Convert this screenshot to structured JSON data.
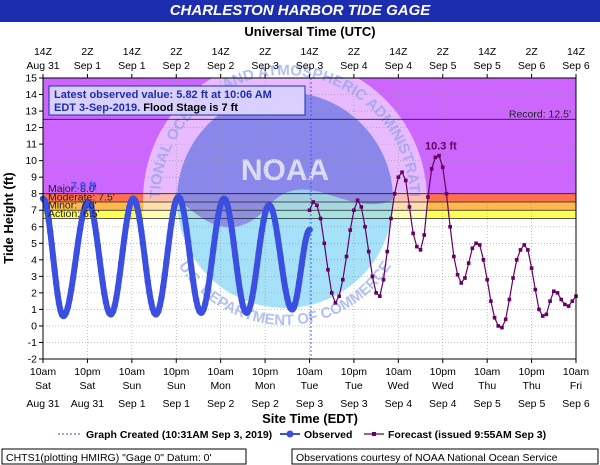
{
  "title": "CHARLESTON HARBOR TIDE GAGE",
  "top_axis_title": "Universal Time (UTC)",
  "bottom_axis_title": "Site Time (EDT)",
  "y_axis_title": "Tide Height (ft)",
  "info_box": {
    "line1": "Latest observed value: 5.82 ft at 10:06 AM",
    "line2_a": "EDT 3-Sep-2019.",
    "line2_b": "Flood Stage is 7 ft"
  },
  "watermark": {
    "center_text": "NOAA",
    "top_arc": "NATIONAL OCEANIC AND ATMOSPHERIC ADMINISTRATION",
    "bottom_arc": "U.S. DEPARTMENT OF COMMERCE"
  },
  "legend": {
    "created": "Graph Created (10:31AM Sep 3, 2019)",
    "observed": "Observed",
    "forecast": "Forecast (issued 9:55AM Sep 3)"
  },
  "footer": {
    "left": "CHTS1(plotting HMIRG) \"Gage 0\" Datum: 0'",
    "right": "Observations courtesy of NOAA National Ocean Service"
  },
  "colors": {
    "title_bg": "#1c2db0",
    "observed": "#3b4fe0",
    "forecast": "#660066",
    "major_band": "#cc66ff",
    "moderate_band": "#ff6f4f",
    "minor_band": "#ffb84d",
    "action_band": "#ffff55",
    "info_text": "#1c2db0"
  },
  "chart_data": {
    "type": "line",
    "title": "CHARLESTON HARBOR TIDE GAGE",
    "xlabel": "Site Time (EDT)",
    "xlabel_top": "Universal Time (UTC)",
    "ylabel": "Tide Height (ft)",
    "ylim": [
      -2,
      15
    ],
    "yticks": [
      -2,
      -1,
      0,
      1,
      2,
      3,
      4,
      5,
      6,
      7,
      8,
      9,
      10,
      11,
      12,
      13,
      14,
      15
    ],
    "x_hours_range": [
      0,
      144
    ],
    "xticks_bottom": [
      {
        "h": 0,
        "l1": "10am",
        "l2": "Sat",
        "l3": "Aug 31"
      },
      {
        "h": 12,
        "l1": "10pm",
        "l2": "Sat",
        "l3": "Aug 31"
      },
      {
        "h": 24,
        "l1": "10am",
        "l2": "Sun",
        "l3": "Sep 1"
      },
      {
        "h": 36,
        "l1": "10pm",
        "l2": "Sun",
        "l3": "Sep 1"
      },
      {
        "h": 48,
        "l1": "10am",
        "l2": "Mon",
        "l3": "Sep 2"
      },
      {
        "h": 60,
        "l1": "10pm",
        "l2": "Mon",
        "l3": "Sep 2"
      },
      {
        "h": 72,
        "l1": "10am",
        "l2": "Tue",
        "l3": "Sep 3"
      },
      {
        "h": 84,
        "l1": "10pm",
        "l2": "Tue",
        "l3": "Sep 3"
      },
      {
        "h": 96,
        "l1": "10am",
        "l2": "Wed",
        "l3": "Sep 4"
      },
      {
        "h": 108,
        "l1": "10pm",
        "l2": "Wed",
        "l3": "Sep 4"
      },
      {
        "h": 120,
        "l1": "10am",
        "l2": "Thu",
        "l3": "Sep 5"
      },
      {
        "h": 132,
        "l1": "10pm",
        "l2": "Thu",
        "l3": "Sep 5"
      },
      {
        "h": 144,
        "l1": "10am",
        "l2": "Fri",
        "l3": "Sep 6"
      }
    ],
    "xticks_top": [
      {
        "h": 0,
        "l1": "14Z",
        "l2": "Aug 31"
      },
      {
        "h": 12,
        "l1": "2Z",
        "l2": "Sep 1"
      },
      {
        "h": 24,
        "l1": "14Z",
        "l2": "Sep 1"
      },
      {
        "h": 36,
        "l1": "2Z",
        "l2": "Sep 2"
      },
      {
        "h": 48,
        "l1": "14Z",
        "l2": "Sep 2"
      },
      {
        "h": 60,
        "l1": "2Z",
        "l2": "Sep 3"
      },
      {
        "h": 72,
        "l1": "14Z",
        "l2": "Sep 3"
      },
      {
        "h": 84,
        "l1": "2Z",
        "l2": "Sep 4"
      },
      {
        "h": 96,
        "l1": "14Z",
        "l2": "Sep 4"
      },
      {
        "h": 108,
        "l1": "2Z",
        "l2": "Sep 5"
      },
      {
        "h": 120,
        "l1": "14Z",
        "l2": "Sep 5"
      },
      {
        "h": 132,
        "l1": "2Z",
        "l2": "Sep 6"
      },
      {
        "h": 144,
        "l1": "14Z",
        "l2": "Sep 6"
      }
    ],
    "flood_categories": [
      {
        "name": "Major",
        "label": "Major: 8.0'",
        "value": 8.0
      },
      {
        "name": "Moderate",
        "label": "Moderate: 7.5'",
        "value": 7.5
      },
      {
        "name": "Minor",
        "label": "Minor: 7.0'",
        "value": 7.0
      },
      {
        "name": "Action",
        "label": "Action: 6.5'",
        "value": 6.5
      }
    ],
    "record": {
      "label": "Record: 12.5'",
      "value": 12.5
    },
    "graph_created_hour": 72.4,
    "peak_annotations": [
      {
        "text": "7.9 ft",
        "x": 1.0,
        "y": 7.9,
        "color": "#3b4fe0"
      },
      {
        "text": "10.3 ft",
        "x": 107.5,
        "y": 10.3,
        "color": "#660066"
      }
    ],
    "observed_peaks": [
      {
        "x": 0,
        "y": 7.7
      },
      {
        "x": 5.5,
        "y": 0.6
      },
      {
        "x": 12.2,
        "y": 7.5
      },
      {
        "x": 18.3,
        "y": 0.7
      },
      {
        "x": 24.4,
        "y": 7.7
      },
      {
        "x": 30.5,
        "y": 0.7
      },
      {
        "x": 36.6,
        "y": 7.8
      },
      {
        "x": 42.7,
        "y": 0.8
      },
      {
        "x": 48.9,
        "y": 7.7
      },
      {
        "x": 55.0,
        "y": 0.8
      },
      {
        "x": 61.1,
        "y": 7.3
      },
      {
        "x": 67.3,
        "y": 1.0
      },
      {
        "x": 72.1,
        "y": 5.82
      }
    ],
    "series": [
      {
        "name": "Observed",
        "style": "thick-dots",
        "peaks": "observed_peaks"
      },
      {
        "name": "Forecast (issued 9:55AM Sep 3)",
        "style": "line-squares",
        "x": [
          72.0,
          73.0,
          74.0,
          75.0,
          76.0,
          77.0,
          78.0,
          79.0,
          80.0,
          81.0,
          82.0,
          83.0,
          84.0,
          85.0,
          86.0,
          87.0,
          88.0,
          89.0,
          90.0,
          91.0,
          92.0,
          93.0,
          94.0,
          95.0,
          96.0,
          97.0,
          98.0,
          99.0,
          100.0,
          101.0,
          102.0,
          103.0,
          104.0,
          105.0,
          106.0,
          107.0,
          108.0,
          109.0,
          110.0,
          111.0,
          112.0,
          113.0,
          114.0,
          115.0,
          116.0,
          117.0,
          118.0,
          119.0,
          120.0,
          121.0,
          122.0,
          123.0,
          124.0,
          125.0,
          126.0,
          127.0,
          128.0,
          129.0,
          130.0,
          131.0,
          132.0,
          133.0,
          134.0,
          135.0,
          136.0,
          137.0,
          138.0,
          139.0,
          140.0,
          141.0,
          142.0,
          143.0,
          144.0
        ],
        "y": [
          7.0,
          7.5,
          7.3,
          6.5,
          5.0,
          3.4,
          2.0,
          1.4,
          1.8,
          2.8,
          4.2,
          5.8,
          7.0,
          7.6,
          7.2,
          6.0,
          4.5,
          3.0,
          2.0,
          1.8,
          2.8,
          4.5,
          6.5,
          8.0,
          9.0,
          9.3,
          8.8,
          7.2,
          5.6,
          4.8,
          4.6,
          5.5,
          7.8,
          9.5,
          10.2,
          10.3,
          9.6,
          8.0,
          6.0,
          4.2,
          3.1,
          2.6,
          2.9,
          3.8,
          4.7,
          5.0,
          4.9,
          4.0,
          2.8,
          1.5,
          0.5,
          0.0,
          -0.1,
          0.4,
          1.6,
          2.9,
          4.0,
          4.6,
          4.9,
          4.6,
          3.5,
          2.2,
          1.0,
          0.6,
          0.7,
          1.5,
          2.1,
          2.0,
          1.6,
          1.3,
          1.2,
          1.5,
          1.8
        ]
      }
    ]
  }
}
